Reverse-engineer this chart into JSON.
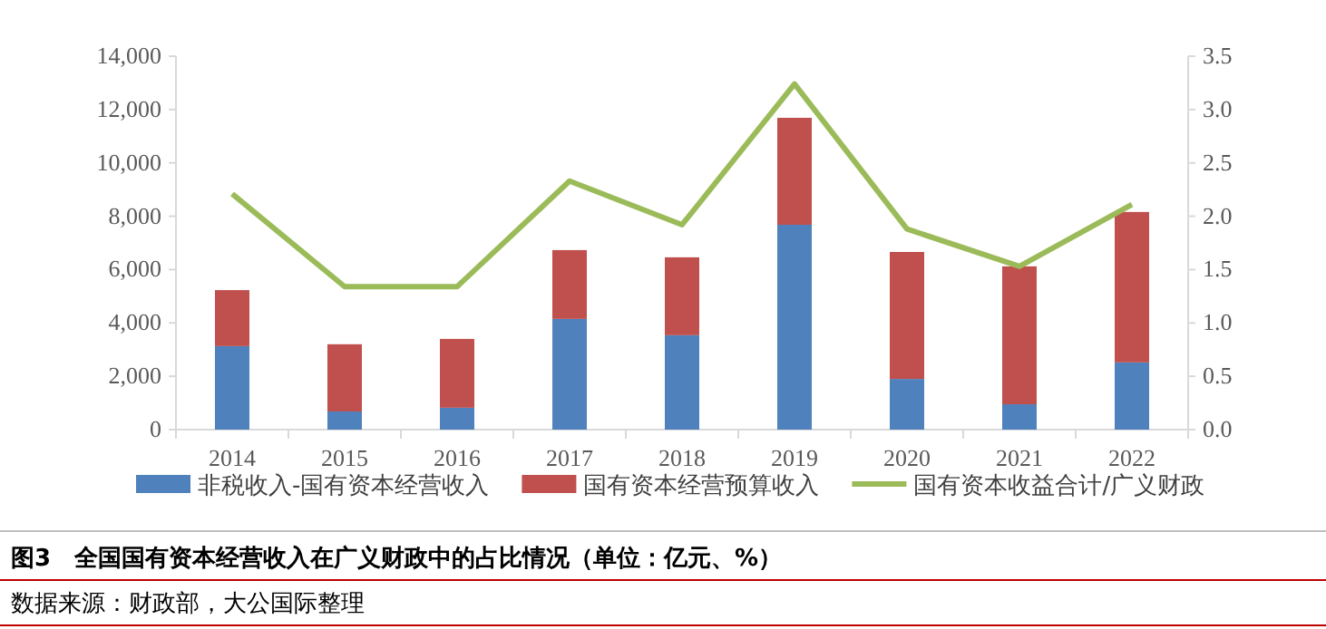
{
  "chart_data": {
    "type": "bar",
    "title": "图3　全国国有资本经营收入在广义财政中的占比情况（单位：亿元、%）",
    "annotations": [
      "数据来源：财政部，大公国际整理"
    ],
    "categories": [
      "2014",
      "2015",
      "2016",
      "2017",
      "2018",
      "2019",
      "2020",
      "2021",
      "2022"
    ],
    "stacked": true,
    "legend": "bottom",
    "series": [
      {
        "name": "非税收入-国有资本经营收入",
        "color": "#4f81bd",
        "values": [
          3130,
          680,
          820,
          4150,
          3540,
          7680,
          1900,
          950,
          2520
        ]
      },
      {
        "name": "国有资本经营预算收入",
        "color": "#c0504d",
        "values": [
          2100,
          2520,
          2580,
          2580,
          2920,
          4010,
          4760,
          5170,
          5640
        ]
      },
      {
        "name": "国有资本收益合计/广义财政",
        "color": "#9bbb59",
        "type": "line",
        "axis": "y2",
        "values": [
          2.21,
          1.34,
          1.34,
          2.33,
          1.92,
          3.24,
          1.88,
          1.53,
          2.11
        ]
      }
    ],
    "ylim": [
      0,
      14000
    ],
    "yticks": [
      0,
      {
        "value": 2000,
        "label": "2,000"
      },
      {
        "value": 4000,
        "label": "4,000"
      },
      {
        "value": 6000,
        "label": "6,000"
      },
      {
        "value": 8000,
        "label": "8,000"
      },
      {
        "value": 10000,
        "label": "10,000"
      },
      {
        "value": 12000,
        "label": "12,000"
      },
      {
        "value": 14000,
        "label": "14,000"
      }
    ],
    "y2lim": [
      0,
      3.5
    ],
    "y2ticks": [
      {
        "value": 0,
        "label": "0.0"
      },
      0.5,
      {
        "value": 1,
        "label": "1.0"
      },
      1.5,
      {
        "value": 2,
        "label": "2.0"
      },
      2.5,
      {
        "value": 3,
        "label": "3.0"
      },
      3.5
    ]
  }
}
